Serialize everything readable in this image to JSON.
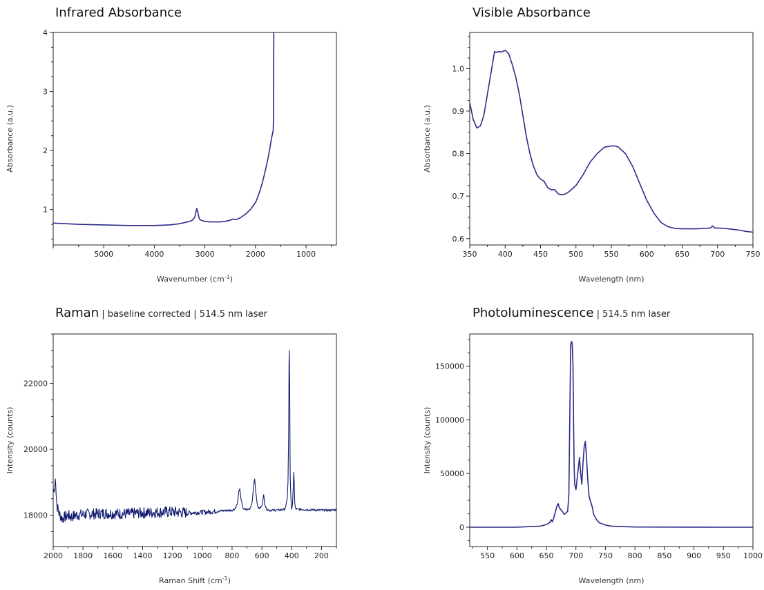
{
  "chart_data": [
    {
      "type": "line",
      "title": "Infrared Absorbance",
      "subtitle": "",
      "xlabel": "Wavenumber (cm",
      "xlabel_sup": "-1",
      "xlabel_end": ")",
      "ylabel": "Absorbance (a.u.)",
      "xlim": [
        6000,
        400
      ],
      "x_reversed": true,
      "ylim": [
        0.4,
        4.0
      ],
      "xticks": [
        5000,
        4000,
        3000,
        2000,
        1000
      ],
      "yticks": [
        1,
        2,
        3,
        4
      ],
      "color": "#2a2a8a",
      "series": [
        {
          "x": [
            6000,
            5500,
            5000,
            4500,
            4000,
            3700,
            3500,
            3400,
            3300,
            3250,
            3200,
            3180,
            3160,
            3140,
            3120,
            3100,
            3050,
            3000,
            2900,
            2800,
            2700,
            2600,
            2500,
            2450,
            2400,
            2350,
            2300,
            2200,
            2100,
            2000,
            1950,
            1900,
            1850,
            1800,
            1750,
            1720,
            1700,
            1680,
            1660,
            1650,
            1645,
            1640,
            1638
          ],
          "y": [
            0.77,
            0.75,
            0.74,
            0.73,
            0.73,
            0.74,
            0.76,
            0.78,
            0.8,
            0.82,
            0.87,
            0.95,
            1.02,
            0.95,
            0.87,
            0.83,
            0.81,
            0.8,
            0.79,
            0.79,
            0.79,
            0.8,
            0.82,
            0.84,
            0.83,
            0.84,
            0.86,
            0.92,
            1.0,
            1.12,
            1.22,
            1.35,
            1.5,
            1.68,
            1.88,
            2.02,
            2.12,
            2.22,
            2.3,
            2.34,
            2.5,
            3.5,
            4.0
          ]
        }
      ]
    },
    {
      "type": "line",
      "title": "Visible Absorbance",
      "subtitle": "",
      "xlabel": "Wavelength (nm)",
      "xlabel_sup": "",
      "xlabel_end": "",
      "ylabel": "Absorbance (a.u.)",
      "xlim": [
        350,
        750
      ],
      "x_reversed": false,
      "ylim": [
        0.585,
        1.085
      ],
      "xticks": [
        350,
        400,
        450,
        500,
        550,
        600,
        650,
        700,
        750
      ],
      "yticks": [
        0.6,
        0.7,
        0.8,
        0.9,
        1.0
      ],
      "color": "#2a2a8a",
      "series": [
        {
          "x": [
            350,
            355,
            360,
            365,
            370,
            375,
            380,
            385,
            388,
            390,
            395,
            400,
            405,
            410,
            415,
            420,
            425,
            430,
            435,
            440,
            445,
            450,
            455,
            460,
            465,
            470,
            475,
            480,
            485,
            490,
            500,
            510,
            520,
            530,
            540,
            550,
            555,
            560,
            570,
            580,
            590,
            600,
            610,
            620,
            630,
            640,
            650,
            660,
            670,
            680,
            690,
            693,
            696,
            700,
            710,
            720,
            730,
            740,
            750
          ],
          "y": [
            0.92,
            0.88,
            0.86,
            0.865,
            0.89,
            0.94,
            0.99,
            1.04,
            1.038,
            1.04,
            1.039,
            1.043,
            1.035,
            1.01,
            0.98,
            0.94,
            0.89,
            0.84,
            0.8,
            0.77,
            0.75,
            0.74,
            0.735,
            0.72,
            0.715,
            0.715,
            0.705,
            0.703,
            0.705,
            0.71,
            0.725,
            0.75,
            0.78,
            0.8,
            0.815,
            0.818,
            0.818,
            0.815,
            0.8,
            0.77,
            0.73,
            0.69,
            0.66,
            0.638,
            0.628,
            0.624,
            0.623,
            0.623,
            0.623,
            0.624,
            0.625,
            0.63,
            0.625,
            0.625,
            0.624,
            0.622,
            0.62,
            0.617,
            0.615
          ]
        }
      ]
    },
    {
      "type": "line",
      "title": "Raman",
      "subtitle": " | baseline corrected | 514.5 nm laser",
      "xlabel": "Raman Shift (cm",
      "xlabel_sup": "-1",
      "xlabel_end": ")",
      "ylabel": "Intensity (counts)",
      "xlim": [
        2000,
        100
      ],
      "x_reversed": true,
      "ylim": [
        17050,
        23500
      ],
      "xticks": [
        2000,
        1800,
        1600,
        1400,
        1200,
        1000,
        800,
        600,
        400,
        200
      ],
      "yticks": [
        18000,
        20000,
        22000
      ],
      "color": "#0f1a6e",
      "noise": true,
      "series": [
        {
          "x": [
            2000,
            1990,
            1985,
            1980,
            1975,
            1960,
            1940,
            1920,
            1900,
            1880,
            1850,
            1800,
            1750,
            1700,
            1650,
            1600,
            1550,
            1500,
            1450,
            1400,
            1350,
            1300,
            1250,
            1200,
            1150,
            1100,
            1050,
            1000,
            950,
            900,
            850,
            800,
            780,
            765,
            755,
            748,
            740,
            730,
            720,
            700,
            680,
            665,
            655,
            648,
            641,
            630,
            620,
            605,
            595,
            588,
            580,
            570,
            550,
            520,
            480,
            450,
            440,
            430,
            425,
            420,
            418,
            416,
            413,
            410,
            405,
            400,
            395,
            390,
            386,
            383,
            380,
            375,
            360,
            340,
            300,
            250,
            200,
            150,
            100
          ],
          "y": [
            18700,
            18900,
            19100,
            18600,
            18300,
            18050,
            17900,
            17950,
            18000,
            17950,
            18000,
            18020,
            18040,
            18050,
            18060,
            18050,
            18050,
            18040,
            18060,
            18070,
            18080,
            18090,
            18100,
            18100,
            18090,
            18070,
            18080,
            18090,
            18100,
            18120,
            18140,
            18150,
            18200,
            18350,
            18700,
            18800,
            18500,
            18250,
            18180,
            18170,
            18200,
            18400,
            18900,
            19100,
            18700,
            18300,
            18200,
            18250,
            18400,
            18600,
            18350,
            18200,
            18150,
            18150,
            18160,
            18180,
            18250,
            18500,
            19000,
            20500,
            22600,
            23000,
            21500,
            19200,
            18500,
            18200,
            18300,
            18800,
            19300,
            19000,
            18400,
            18200,
            18180,
            18180,
            18170,
            18160,
            18150,
            18150,
            18170
          ]
        }
      ]
    },
    {
      "type": "line",
      "title": "Photoluminescence",
      "subtitle": " | 514.5 nm laser",
      "xlabel": "Wavelength (nm)",
      "xlabel_sup": "",
      "xlabel_end": "",
      "ylabel": "Intensity (counts)",
      "xlim": [
        520,
        1000
      ],
      "x_reversed": false,
      "ylim": [
        -18000,
        180000
      ],
      "xticks": [
        550,
        600,
        650,
        700,
        750,
        800,
        850,
        900,
        950,
        1000
      ],
      "yticks": [
        0,
        50000,
        100000,
        150000
      ],
      "color": "#2a2a8a",
      "series": [
        {
          "x": [
            520,
            550,
            600,
            640,
            650,
            655,
            658,
            660,
            662,
            665,
            668,
            670,
            672,
            675,
            678,
            680,
            683,
            686,
            688,
            690,
            691,
            692,
            693,
            694,
            695,
            696,
            697,
            698,
            700,
            702,
            704,
            706,
            708,
            710,
            712,
            714,
            716,
            718,
            720,
            722,
            724,
            726,
            728,
            730,
            735,
            740,
            750,
            760,
            780,
            800,
            850,
            900,
            950,
            1000
          ],
          "y": [
            0,
            0,
            0,
            1000,
            2500,
            4000,
            7000,
            5000,
            8000,
            14000,
            20000,
            22000,
            18000,
            16000,
            14000,
            12000,
            13000,
            15000,
            30000,
            120000,
            170000,
            172000,
            173000,
            168000,
            150000,
            100000,
            55000,
            40000,
            35000,
            45000,
            55000,
            65000,
            50000,
            40000,
            60000,
            75000,
            80000,
            65000,
            45000,
            30000,
            25000,
            22000,
            18000,
            12000,
            7000,
            4000,
            2000,
            1000,
            500,
            200,
            100,
            50,
            0,
            0
          ]
        }
      ]
    }
  ]
}
